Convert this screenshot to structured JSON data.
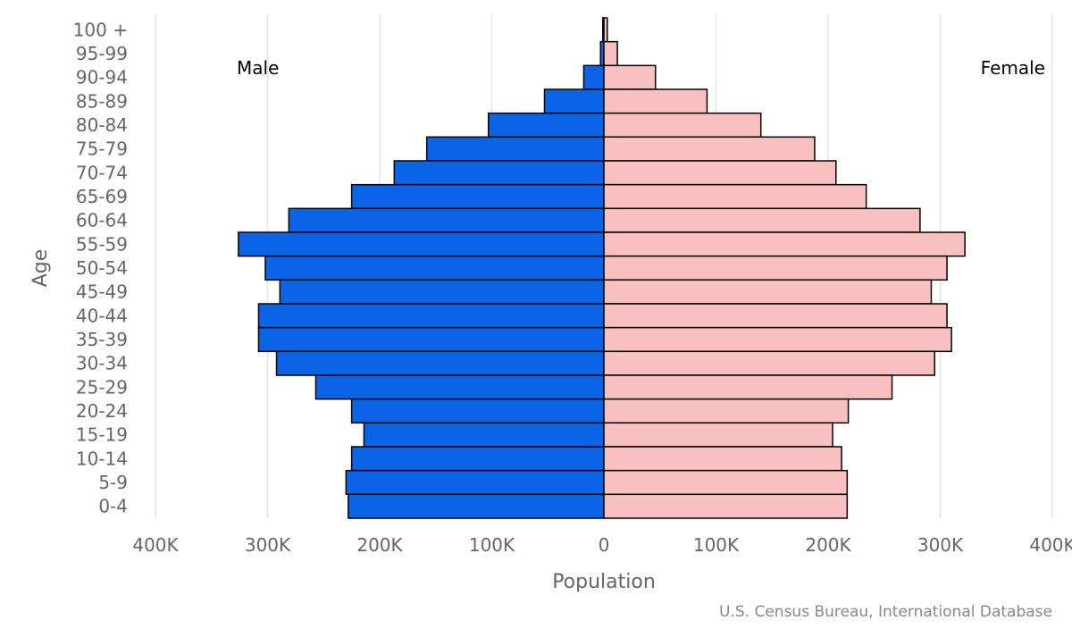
{
  "chart_data": {
    "type": "bar",
    "orientation": "horizontal",
    "subtype": "population-pyramid",
    "categories": [
      "100 +",
      "95-99",
      "90-94",
      "85-89",
      "80-84",
      "75-79",
      "70-74",
      "65-69",
      "60-64",
      "55-59",
      "50-54",
      "45-49",
      "40-44",
      "35-39",
      "30-34",
      "25-29",
      "20-24",
      "15-19",
      "10-14",
      "5-9",
      "0-4"
    ],
    "series": [
      {
        "name": "Male",
        "color": "#0b63e5",
        "values": [
          1000,
          3000,
          18000,
          53000,
          103000,
          158000,
          187000,
          225000,
          281000,
          326000,
          302000,
          289000,
          308000,
          308000,
          292000,
          257000,
          225000,
          214000,
          225000,
          230000,
          228000
        ]
      },
      {
        "name": "Female",
        "color": "#f9c0c0",
        "values": [
          3000,
          12000,
          46000,
          92000,
          140000,
          188000,
          207000,
          234000,
          282000,
          322000,
          306000,
          292000,
          306000,
          310000,
          295000,
          257000,
          218000,
          204000,
          212000,
          217000,
          217000
        ]
      }
    ],
    "x_ticks": [
      "400K",
      "300K",
      "200K",
      "100K",
      "0",
      "100K",
      "200K",
      "300K",
      "400K"
    ],
    "xlim": [
      -400000,
      400000
    ],
    "xlabel": "Population",
    "ylabel": "Age",
    "grid": "vertical",
    "bar_stroke": "#000000",
    "grid_color": "#e6e6e6",
    "axis_text_color": "#666666",
    "side_labels": {
      "left": "Male",
      "right": "Female"
    },
    "credit": "U.S. Census Bureau, International Database"
  }
}
